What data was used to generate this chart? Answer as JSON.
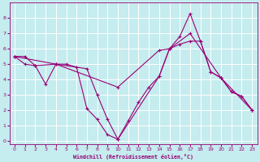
{
  "xlabel": "Windchill (Refroidissement éolien,°C)",
  "bg_color": "#c5ecee",
  "grid_color": "#ffffff",
  "line_color": "#990077",
  "xlim": [
    -0.5,
    23.5
  ],
  "ylim": [
    -0.2,
    9.0
  ],
  "xticks": [
    0,
    1,
    2,
    3,
    4,
    5,
    6,
    7,
    8,
    9,
    10,
    11,
    12,
    13,
    14,
    15,
    16,
    17,
    18,
    19,
    20,
    21,
    22,
    23
  ],
  "yticks": [
    0,
    1,
    2,
    3,
    4,
    5,
    6,
    7,
    8
  ],
  "line1_x": [
    0,
    1,
    2,
    3,
    4,
    5,
    6,
    7,
    8,
    9,
    10,
    11,
    12,
    13,
    14,
    15,
    16,
    17,
    18,
    19,
    20,
    21,
    22,
    23
  ],
  "line1_y": [
    5.5,
    5.5,
    4.9,
    3.7,
    5.0,
    5.0,
    4.8,
    2.1,
    1.4,
    0.4,
    0.1,
    1.3,
    2.5,
    3.5,
    4.2,
    6.0,
    6.8,
    8.3,
    6.5,
    4.5,
    4.1,
    3.2,
    2.9,
    2.0
  ],
  "line2_x": [
    0,
    1,
    2,
    4,
    7,
    8,
    9,
    10,
    14,
    15,
    17,
    20,
    21,
    22,
    23
  ],
  "line2_y": [
    5.5,
    5.0,
    4.9,
    5.0,
    4.7,
    3.0,
    1.4,
    0.1,
    4.2,
    6.0,
    7.0,
    4.1,
    3.2,
    2.9,
    2.0
  ],
  "line3_x": [
    0,
    4,
    10,
    14,
    15,
    16,
    17,
    18,
    19,
    20,
    23
  ],
  "line3_y": [
    5.5,
    5.0,
    3.5,
    5.9,
    6.0,
    6.3,
    6.5,
    6.5,
    4.5,
    4.1,
    2.0
  ]
}
